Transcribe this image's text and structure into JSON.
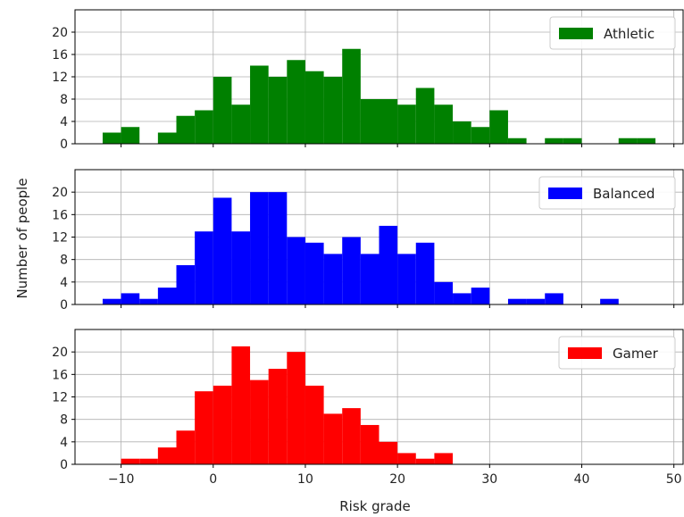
{
  "chart_data": {
    "type": "histogram",
    "xlabel": "Risk grade",
    "ylabel": "Number of people",
    "xlim": [
      -15,
      51
    ],
    "ylim": [
      0,
      24
    ],
    "x_ticks": [
      -10,
      0,
      10,
      20,
      30,
      40,
      50
    ],
    "y_ticks": [
      0,
      4,
      8,
      12,
      16,
      20
    ],
    "grid": true,
    "legend_position": "top-right",
    "bin_width": 2,
    "panels": [
      {
        "name": "Athletic",
        "color": "#008000",
        "bins": [
          {
            "x0": -12,
            "count": 2
          },
          {
            "x0": -10,
            "count": 3
          },
          {
            "x0": -8,
            "count": 0
          },
          {
            "x0": -6,
            "count": 2
          },
          {
            "x0": -4,
            "count": 5
          },
          {
            "x0": -2,
            "count": 6
          },
          {
            "x0": 0,
            "count": 12
          },
          {
            "x0": 2,
            "count": 7
          },
          {
            "x0": 4,
            "count": 14
          },
          {
            "x0": 6,
            "count": 12
          },
          {
            "x0": 8,
            "count": 15
          },
          {
            "x0": 10,
            "count": 13
          },
          {
            "x0": 12,
            "count": 12
          },
          {
            "x0": 14,
            "count": 17
          },
          {
            "x0": 16,
            "count": 8
          },
          {
            "x0": 18,
            "count": 8
          },
          {
            "x0": 20,
            "count": 7
          },
          {
            "x0": 22,
            "count": 10
          },
          {
            "x0": 24,
            "count": 7
          },
          {
            "x0": 26,
            "count": 4
          },
          {
            "x0": 28,
            "count": 3
          },
          {
            "x0": 30,
            "count": 6
          },
          {
            "x0": 32,
            "count": 1
          },
          {
            "x0": 34,
            "count": 0
          },
          {
            "x0": 36,
            "count": 1
          },
          {
            "x0": 38,
            "count": 1
          },
          {
            "x0": 40,
            "count": 0
          },
          {
            "x0": 42,
            "count": 0
          },
          {
            "x0": 44,
            "count": 1
          },
          {
            "x0": 46,
            "count": 1
          }
        ]
      },
      {
        "name": "Balanced",
        "color": "#0000ff",
        "bins": [
          {
            "x0": -12,
            "count": 1
          },
          {
            "x0": -10,
            "count": 2
          },
          {
            "x0": -8,
            "count": 1
          },
          {
            "x0": -6,
            "count": 3
          },
          {
            "x0": -4,
            "count": 7
          },
          {
            "x0": -2,
            "count": 13
          },
          {
            "x0": 0,
            "count": 19
          },
          {
            "x0": 2,
            "count": 13
          },
          {
            "x0": 4,
            "count": 20
          },
          {
            "x0": 6,
            "count": 20
          },
          {
            "x0": 8,
            "count": 12
          },
          {
            "x0": 10,
            "count": 11
          },
          {
            "x0": 12,
            "count": 9
          },
          {
            "x0": 14,
            "count": 12
          },
          {
            "x0": 16,
            "count": 9
          },
          {
            "x0": 18,
            "count": 14
          },
          {
            "x0": 20,
            "count": 9
          },
          {
            "x0": 22,
            "count": 11
          },
          {
            "x0": 24,
            "count": 4
          },
          {
            "x0": 26,
            "count": 2
          },
          {
            "x0": 28,
            "count": 3
          },
          {
            "x0": 30,
            "count": 0
          },
          {
            "x0": 32,
            "count": 1
          },
          {
            "x0": 34,
            "count": 1
          },
          {
            "x0": 36,
            "count": 2
          },
          {
            "x0": 38,
            "count": 0
          },
          {
            "x0": 40,
            "count": 0
          },
          {
            "x0": 42,
            "count": 1
          }
        ]
      },
      {
        "name": "Gamer",
        "color": "#ff0000",
        "bins": [
          {
            "x0": -10,
            "count": 1
          },
          {
            "x0": -8,
            "count": 1
          },
          {
            "x0": -6,
            "count": 3
          },
          {
            "x0": -4,
            "count": 6
          },
          {
            "x0": -2,
            "count": 13
          },
          {
            "x0": 0,
            "count": 14
          },
          {
            "x0": 2,
            "count": 21
          },
          {
            "x0": 4,
            "count": 15
          },
          {
            "x0": 6,
            "count": 17
          },
          {
            "x0": 8,
            "count": 20
          },
          {
            "x0": 10,
            "count": 14
          },
          {
            "x0": 12,
            "count": 9
          },
          {
            "x0": 14,
            "count": 10
          },
          {
            "x0": 16,
            "count": 7
          },
          {
            "x0": 18,
            "count": 4
          },
          {
            "x0": 20,
            "count": 2
          },
          {
            "x0": 22,
            "count": 1
          },
          {
            "x0": 24,
            "count": 2
          }
        ]
      }
    ]
  }
}
